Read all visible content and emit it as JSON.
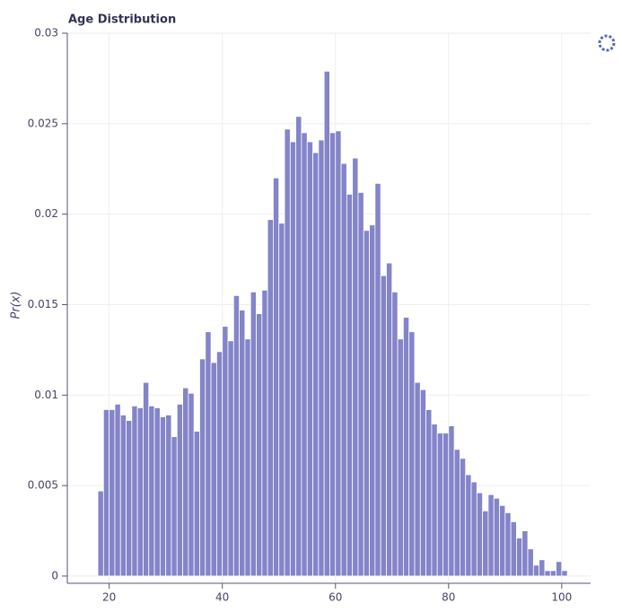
{
  "chart_data": {
    "type": "histogram",
    "title": "Age Distribution",
    "y_label": "Pr(x)",
    "bins": [
      18,
      19,
      20,
      21,
      22,
      23,
      24,
      25,
      26,
      27,
      28,
      29,
      30,
      31,
      32,
      33,
      34,
      35,
      36,
      37,
      38,
      39,
      40,
      41,
      42,
      43,
      44,
      45,
      46,
      47,
      48,
      49,
      50,
      51,
      52,
      53,
      54,
      55,
      56,
      57,
      58,
      59,
      60,
      61,
      62,
      63,
      64,
      65,
      66,
      67,
      68,
      69,
      70,
      71,
      72,
      73,
      74,
      75,
      76,
      77,
      78,
      79,
      80,
      81,
      82,
      83,
      84,
      85,
      86,
      87,
      88,
      89,
      90,
      91,
      92,
      93,
      94,
      95,
      96,
      97,
      98,
      99,
      100,
      101
    ],
    "values": [
      0.0047,
      0.0092,
      0.0092,
      0.0095,
      0.0089,
      0.0086,
      0.0094,
      0.0093,
      0.0107,
      0.0094,
      0.0093,
      0.0088,
      0.0089,
      0.0077,
      0.0095,
      0.0104,
      0.0101,
      0.008,
      0.012,
      0.0135,
      0.0118,
      0.0124,
      0.0138,
      0.013,
      0.0155,
      0.0147,
      0.0131,
      0.0157,
      0.0145,
      0.0158,
      0.0197,
      0.022,
      0.0195,
      0.0247,
      0.024,
      0.0254,
      0.0245,
      0.024,
      0.0234,
      0.0241,
      0.0279,
      0.0245,
      0.0246,
      0.0228,
      0.0211,
      0.0231,
      0.0212,
      0.0191,
      0.0194,
      0.0217,
      0.0166,
      0.0173,
      0.0157,
      0.0131,
      0.0143,
      0.0135,
      0.0107,
      0.0103,
      0.0092,
      0.0084,
      0.0079,
      0.0079,
      0.0083,
      0.007,
      0.0065,
      0.0056,
      0.0052,
      0.0046,
      0.0036,
      0.0045,
      0.0043,
      0.0039,
      0.0035,
      0.003,
      0.0021,
      0.0025,
      0.0015,
      0.0006,
      0.0009,
      0.0003,
      0.0003,
      0.0008,
      0.0003
    ],
    "color": "#8484c9",
    "xlim": [
      12.6,
      105.1
    ],
    "xticks": [
      20,
      40,
      60,
      80,
      100
    ],
    "ylim": [
      -0.0004,
      0.03
    ],
    "yticks": [
      0,
      0.005,
      0.01,
      0.015,
      0.02,
      0.025,
      0.03
    ],
    "grid": true
  }
}
